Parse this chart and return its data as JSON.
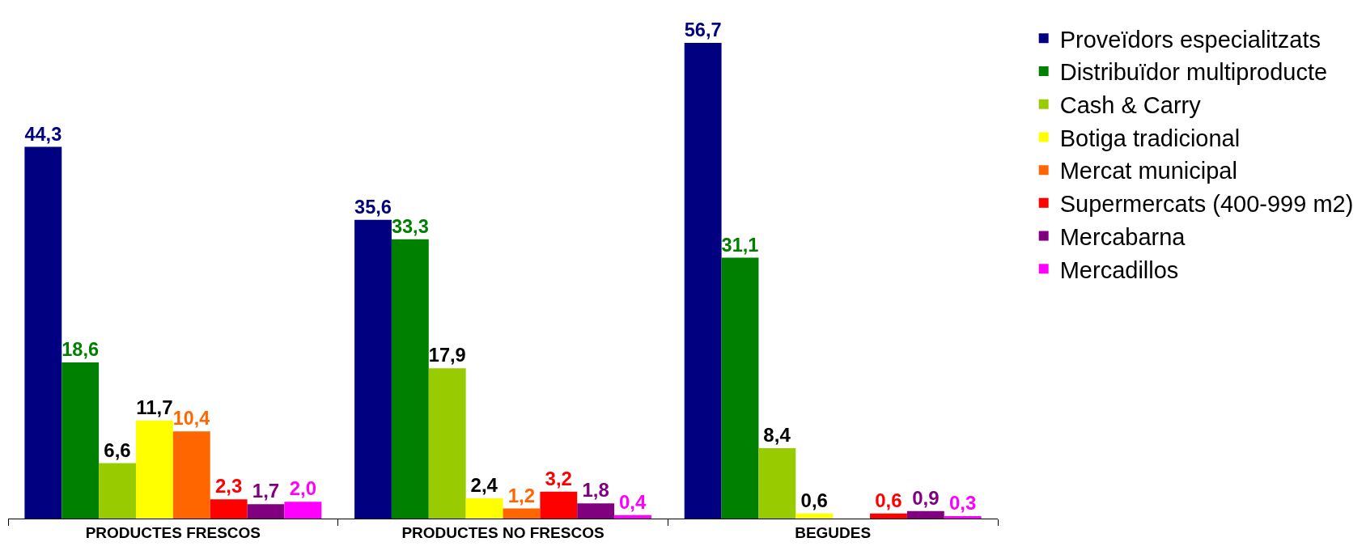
{
  "chart_data": {
    "type": "bar",
    "categories": [
      "PRODUCTES FRESCOS",
      "PRODUCTES NO FRESCOS",
      "BEGUDES"
    ],
    "series": [
      {
        "name": "Proveïdors especialitzats",
        "color": "#000080",
        "values": [
          44.3,
          35.6,
          56.7
        ],
        "value_labels": [
          "44,3",
          "35,6",
          "56,7"
        ]
      },
      {
        "name": "Distribuïdor multiproducte",
        "color": "#008000",
        "values": [
          18.6,
          33.3,
          31.1
        ],
        "value_labels": [
          "18,6",
          "33,3",
          "31,1"
        ]
      },
      {
        "name": "Cash & Carry",
        "color": "#99cc00",
        "values": [
          6.6,
          17.9,
          8.4
        ],
        "value_labels": [
          "6,6",
          "17,9",
          "8,4"
        ]
      },
      {
        "name": "Botiga tradicional",
        "color": "#ffff00",
        "values": [
          11.7,
          2.4,
          0.6
        ],
        "value_labels": [
          "11,7",
          "2,4",
          "0,6"
        ]
      },
      {
        "name": "Mercat municipal",
        "color": "#ff6600",
        "values": [
          10.4,
          1.2,
          null
        ],
        "value_labels": [
          "10,4",
          "1,2",
          null
        ]
      },
      {
        "name": "Supermercats (400-999 m2)",
        "color": "#ff0000",
        "values": [
          2.3,
          3.2,
          0.6
        ],
        "value_labels": [
          "2,3",
          "3,2",
          "0,6"
        ]
      },
      {
        "name": "Mercabarna",
        "color": "#800080",
        "values": [
          1.7,
          1.8,
          0.9
        ],
        "value_labels": [
          "1,7",
          "1,8",
          "0,9"
        ]
      },
      {
        "name": "Mercadillos",
        "color": "#ff00ff",
        "values": [
          2.0,
          0.4,
          0.3
        ],
        "value_labels": [
          "2,0",
          "0,4",
          "0,3"
        ]
      }
    ],
    "legend": "top right",
    "tick_labels": "x"
  }
}
